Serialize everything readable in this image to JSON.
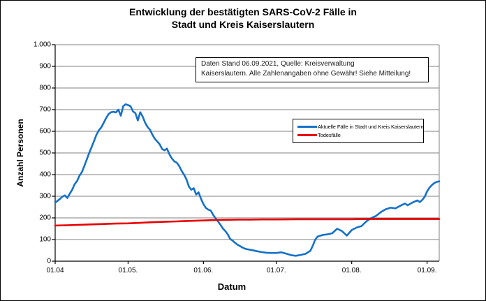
{
  "figure": {
    "title_line1": "Entwicklung der bestätigten SARS-CoV-2 Fälle in",
    "title_line2": "Stadt und Kreis Kaiserslautern"
  },
  "annotation": {
    "line1": "Daten Stand 06.09.2021, Quelle: Kreisverwaltung",
    "line2": "Kaiserslautern. Alle Zahlenangaben ohne Gewähr! Siehe Mitteilung!"
  },
  "chart_data": {
    "type": "line",
    "title": "Entwicklung der bestätigten SARS-CoV-2 Fälle in Stadt und Kreis Kaiserslautern",
    "xlabel": "Datum",
    "ylabel": "Anzahl Personen",
    "ylim": [
      0,
      1000
    ],
    "x_range_days": [
      0,
      158
    ],
    "grid": true,
    "legend_position": "center-right",
    "colors": {
      "cases": "#1571c9",
      "deaths": "#e90000",
      "gridline": "#808080",
      "axis": "#000000"
    },
    "y_ticks": [
      {
        "value": 0,
        "label": "0"
      },
      {
        "value": 100,
        "label": "100"
      },
      {
        "value": 200,
        "label": "200"
      },
      {
        "value": 300,
        "label": "300"
      },
      {
        "value": 400,
        "label": "400"
      },
      {
        "value": 500,
        "label": "500"
      },
      {
        "value": 600,
        "label": "600"
      },
      {
        "value": 700,
        "label": "700"
      },
      {
        "value": 800,
        "label": "800"
      },
      {
        "value": 900,
        "label": "900"
      },
      {
        "value": 1000,
        "label": "1.000"
      }
    ],
    "x_ticks": [
      {
        "day": 0,
        "label": "01.04"
      },
      {
        "day": 30,
        "label": "01.05."
      },
      {
        "day": 61,
        "label": "01.06."
      },
      {
        "day": 91,
        "label": "01.07."
      },
      {
        "day": 122,
        "label": "01.08."
      },
      {
        "day": 153,
        "label": "01.09."
      }
    ],
    "series": [
      {
        "name": "Aktuelle Fälle in Stadt und Kreis Kaiserslautern",
        "color": "#1571c9",
        "points": [
          [
            0,
            270
          ],
          [
            2,
            288
          ],
          [
            3,
            298
          ],
          [
            4,
            304
          ],
          [
            5,
            292
          ],
          [
            6,
            312
          ],
          [
            7,
            330
          ],
          [
            8,
            355
          ],
          [
            9,
            370
          ],
          [
            10,
            395
          ],
          [
            11,
            412
          ],
          [
            12,
            440
          ],
          [
            13,
            470
          ],
          [
            14,
            500
          ],
          [
            15,
            527
          ],
          [
            16,
            555
          ],
          [
            17,
            585
          ],
          [
            18,
            605
          ],
          [
            19,
            618
          ],
          [
            20,
            640
          ],
          [
            21,
            662
          ],
          [
            22,
            680
          ],
          [
            23,
            688
          ],
          [
            24,
            690
          ],
          [
            25,
            687
          ],
          [
            26,
            700
          ],
          [
            27,
            672
          ],
          [
            28,
            716
          ],
          [
            29,
            725
          ],
          [
            30,
            721
          ],
          [
            31,
            716
          ],
          [
            32,
            692
          ],
          [
            33,
            684
          ],
          [
            34,
            650
          ],
          [
            35,
            688
          ],
          [
            36,
            668
          ],
          [
            37,
            640
          ],
          [
            38,
            620
          ],
          [
            39,
            607
          ],
          [
            40,
            585
          ],
          [
            41,
            565
          ],
          [
            42,
            553
          ],
          [
            43,
            540
          ],
          [
            44,
            518
          ],
          [
            45,
            512
          ],
          [
            46,
            520
          ],
          [
            47,
            494
          ],
          [
            48,
            475
          ],
          [
            49,
            461
          ],
          [
            50,
            455
          ],
          [
            51,
            440
          ],
          [
            52,
            418
          ],
          [
            53,
            400
          ],
          [
            54,
            378
          ],
          [
            55,
            345
          ],
          [
            56,
            330
          ],
          [
            57,
            337
          ],
          [
            58,
            308
          ],
          [
            59,
            318
          ],
          [
            60,
            288
          ],
          [
            61,
            264
          ],
          [
            62,
            246
          ],
          [
            63,
            238
          ],
          [
            64,
            234
          ],
          [
            65,
            214
          ],
          [
            66,
            198
          ],
          [
            67,
            184
          ],
          [
            68,
            168
          ],
          [
            69,
            151
          ],
          [
            70,
            139
          ],
          [
            71,
            124
          ],
          [
            72,
            103
          ],
          [
            73,
            95
          ],
          [
            74,
            85
          ],
          [
            75,
            76
          ],
          [
            76,
            70
          ],
          [
            77,
            64
          ],
          [
            78,
            58
          ],
          [
            79,
            55
          ],
          [
            81,
            51
          ],
          [
            83,
            46
          ],
          [
            85,
            42
          ],
          [
            87,
            39
          ],
          [
            89,
            38
          ],
          [
            91,
            38
          ],
          [
            93,
            41
          ],
          [
            95,
            35
          ],
          [
            97,
            28
          ],
          [
            99,
            25
          ],
          [
            101,
            29
          ],
          [
            103,
            34
          ],
          [
            105,
            48
          ],
          [
            106,
            72
          ],
          [
            107,
            100
          ],
          [
            108,
            114
          ],
          [
            110,
            121
          ],
          [
            112,
            124
          ],
          [
            114,
            129
          ],
          [
            116,
            150
          ],
          [
            118,
            139
          ],
          [
            120,
            118
          ],
          [
            122,
            144
          ],
          [
            124,
            155
          ],
          [
            126,
            162
          ],
          [
            128,
            184
          ],
          [
            130,
            199
          ],
          [
            132,
            209
          ],
          [
            134,
            227
          ],
          [
            136,
            240
          ],
          [
            138,
            247
          ],
          [
            140,
            244
          ],
          [
            141,
            250
          ],
          [
            143,
            262
          ],
          [
            144,
            266
          ],
          [
            145,
            258
          ],
          [
            147,
            271
          ],
          [
            149,
            281
          ],
          [
            150,
            273
          ],
          [
            151,
            283
          ],
          [
            152,
            297
          ],
          [
            153,
            322
          ],
          [
            154,
            340
          ],
          [
            155,
            352
          ],
          [
            156,
            361
          ],
          [
            157,
            366
          ],
          [
            158,
            369
          ]
        ]
      },
      {
        "name": "Todesfälle",
        "color": "#e90000",
        "points": [
          [
            0,
            165
          ],
          [
            5,
            166
          ],
          [
            10,
            168
          ],
          [
            15,
            170
          ],
          [
            20,
            172
          ],
          [
            25,
            174
          ],
          [
            30,
            175
          ],
          [
            35,
            177
          ],
          [
            40,
            180
          ],
          [
            45,
            182
          ],
          [
            50,
            184
          ],
          [
            55,
            186
          ],
          [
            61,
            188
          ],
          [
            66,
            190
          ],
          [
            70,
            191
          ],
          [
            75,
            192
          ],
          [
            80,
            192
          ],
          [
            85,
            193
          ],
          [
            91,
            193
          ],
          [
            100,
            194
          ],
          [
            110,
            194
          ],
          [
            122,
            194
          ],
          [
            130,
            195
          ],
          [
            140,
            195
          ],
          [
            153,
            195
          ],
          [
            158,
            195
          ]
        ]
      }
    ]
  }
}
